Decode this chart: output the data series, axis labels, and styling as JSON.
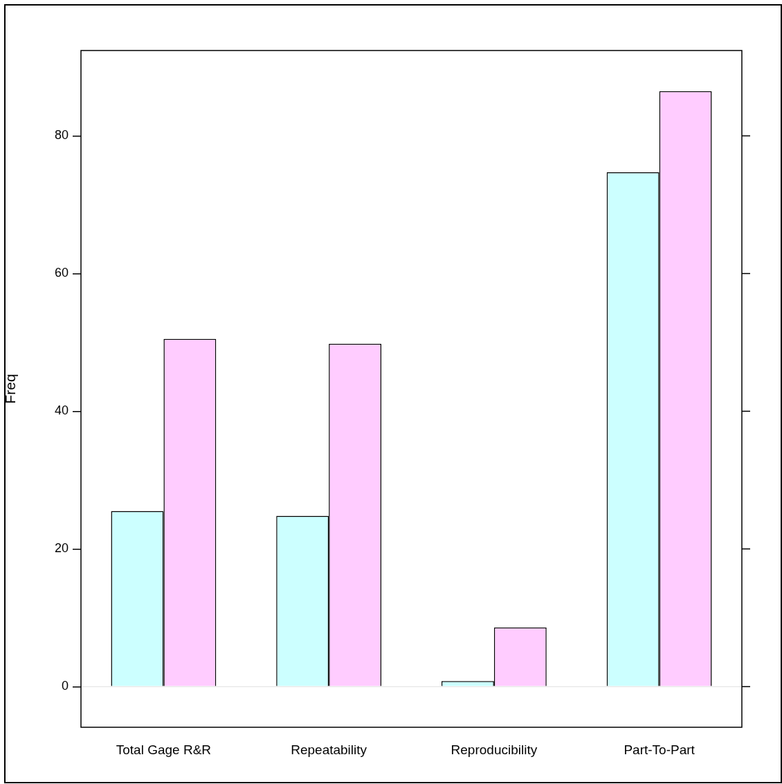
{
  "chart_data": {
    "type": "bar",
    "ylabel": "Freq",
    "categories": [
      "Total Gage R&R",
      "Repeatability",
      "Reproducibility",
      "Part-To-Part"
    ],
    "series": [
      {
        "color": "#ccffff",
        "values": [
          25.5,
          24.8,
          0.8,
          74.7
        ]
      },
      {
        "color": "#ffccff",
        "values": [
          50.5,
          49.8,
          8.6,
          86.5
        ]
      }
    ],
    "ylim": [
      -5.9,
      92.4
    ],
    "yticks": [
      0,
      20,
      40,
      60,
      80
    ],
    "ref_lines": [
      {
        "axis": "y",
        "value": 0,
        "color": "#e0e0e0"
      }
    ],
    "grid": false,
    "legend": false
  }
}
